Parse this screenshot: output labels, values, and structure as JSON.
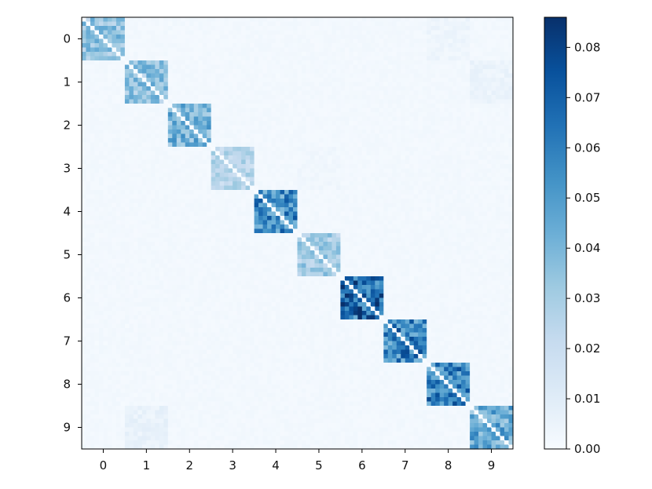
{
  "chart_data": {
    "type": "heatmap",
    "title": "",
    "xlabel": "",
    "ylabel": "",
    "x_categories": [
      "0",
      "1",
      "2",
      "3",
      "4",
      "5",
      "6",
      "7",
      "8",
      "9"
    ],
    "y_categories": [
      "0",
      "1",
      "2",
      "3",
      "4",
      "5",
      "6",
      "7",
      "8",
      "9"
    ],
    "cells_per_block": 10,
    "block_values": [
      [
        0.035,
        0.002,
        0.002,
        0.002,
        0.002,
        0.002,
        0.002,
        0.002,
        0.004,
        0.002
      ],
      [
        0.002,
        0.035,
        0.002,
        0.002,
        0.002,
        0.002,
        0.002,
        0.002,
        0.002,
        0.005
      ],
      [
        0.002,
        0.002,
        0.041,
        0.002,
        0.002,
        0.002,
        0.002,
        0.002,
        0.002,
        0.002
      ],
      [
        0.002,
        0.002,
        0.002,
        0.025,
        0.002,
        0.003,
        0.002,
        0.002,
        0.002,
        0.002
      ],
      [
        0.002,
        0.002,
        0.002,
        0.002,
        0.056,
        0.002,
        0.002,
        0.002,
        0.002,
        0.002
      ],
      [
        0.002,
        0.002,
        0.002,
        0.002,
        0.002,
        0.031,
        0.002,
        0.002,
        0.002,
        0.002
      ],
      [
        0.002,
        0.002,
        0.002,
        0.002,
        0.002,
        0.002,
        0.065,
        0.002,
        0.002,
        0.002
      ],
      [
        0.002,
        0.002,
        0.002,
        0.002,
        0.002,
        0.002,
        0.002,
        0.058,
        0.002,
        0.002
      ],
      [
        0.002,
        0.002,
        0.002,
        0.002,
        0.002,
        0.002,
        0.002,
        0.002,
        0.058,
        0.002
      ],
      [
        0.002,
        0.006,
        0.002,
        0.002,
        0.002,
        0.002,
        0.002,
        0.002,
        0.002,
        0.044
      ]
    ],
    "diagonal_value": 0.0,
    "colormap": "Blues",
    "colormap_stops": [
      "#f7fbff",
      "#deebf7",
      "#c6dbef",
      "#9ecae1",
      "#6baed6",
      "#4292c6",
      "#2171b5",
      "#08519c",
      "#08306b"
    ],
    "colorbar": {
      "min": 0.0,
      "max": 0.086,
      "ticks": [
        0.0,
        0.01,
        0.02,
        0.03,
        0.04,
        0.05,
        0.06,
        0.07,
        0.08
      ],
      "tick_labels": [
        "0.00",
        "0.01",
        "0.02",
        "0.03",
        "0.04",
        "0.05",
        "0.06",
        "0.07",
        "0.08"
      ]
    },
    "grid": false,
    "legend": "colorbar-right"
  }
}
